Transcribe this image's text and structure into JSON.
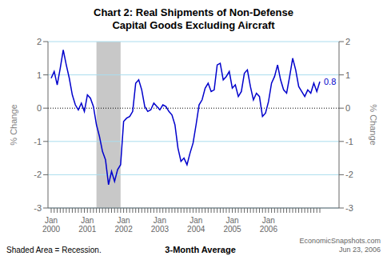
{
  "chart_data": {
    "type": "line",
    "title": "Chart 2: Real Shipments of Non-Defense\nCapital Goods Excluding Aircraft",
    "ylabel": "% Change",
    "y2label": "% Change",
    "categories": [
      "Jan\n2000",
      null,
      null,
      null,
      null,
      null,
      null,
      null,
      null,
      null,
      null,
      null,
      "Jan\n2001",
      null,
      null,
      null,
      null,
      null,
      null,
      null,
      null,
      null,
      null,
      null,
      "Jan\n2002",
      null,
      null,
      null,
      null,
      null,
      null,
      null,
      null,
      null,
      null,
      null,
      "Jan\n2003",
      null,
      null,
      null,
      null,
      null,
      null,
      null,
      null,
      null,
      null,
      null,
      "Jan\n2004",
      null,
      null,
      null,
      null,
      null,
      null,
      null,
      null,
      null,
      null,
      null,
      "Jan\n2005",
      null,
      null,
      null,
      null,
      null,
      null,
      null,
      null,
      null,
      null,
      null,
      "Jan\n2006",
      null,
      null,
      null,
      null,
      null,
      null,
      null,
      null,
      null,
      null,
      null,
      null,
      null,
      null,
      null,
      null,
      null
    ],
    "values": [
      0.9,
      1.1,
      0.7,
      1.2,
      1.75,
      1.3,
      0.9,
      0.4,
      0.1,
      -0.05,
      0.15,
      -0.1,
      0.4,
      0.3,
      0.05,
      -0.5,
      -0.85,
      -1.3,
      -1.55,
      -2.3,
      -1.9,
      -2.2,
      -1.85,
      -1.7,
      -0.4,
      -0.3,
      -0.25,
      -0.1,
      0.75,
      0.85,
      0.55,
      0.05,
      -0.1,
      -0.05,
      0.15,
      0.05,
      -0.05,
      0.1,
      0.05,
      -0.1,
      -0.2,
      -0.5,
      -1.2,
      -1.6,
      -1.5,
      -1.7,
      -1.35,
      -1.05,
      -0.5,
      0.1,
      0.25,
      0.6,
      0.75,
      0.5,
      0.55,
      1.3,
      1.35,
      0.85,
      0.95,
      1.1,
      0.6,
      0.7,
      0.35,
      0.5,
      1.05,
      1.15,
      0.65,
      0.25,
      0.45,
      0.35,
      -0.25,
      -0.15,
      0.2,
      0.75,
      0.95,
      1.3,
      0.85,
      0.55,
      0.45,
      0.95,
      1.5,
      1.15,
      0.65,
      0.5,
      0.35,
      0.55,
      0.45,
      0.75,
      0.5,
      0.8
    ],
    "color": "#0000cc",
    "ylim": [
      -3,
      2
    ],
    "yticks": [
      -3,
      -2,
      -1,
      0,
      1,
      2
    ],
    "y2lim": [
      -3,
      2
    ],
    "y2ticks": [
      -3,
      -2,
      -1,
      0,
      1,
      2
    ],
    "grid": true,
    "annotations": [
      {
        "text": "0.8"
      }
    ],
    "shaded": {
      "x_start": 15,
      "x_end": 23,
      "color": "#c8c8c8"
    },
    "footer": [
      "Shaded Area = Recession.",
      "3-Month Average",
      "EconomicSnapshots.com\nJun 23, 2006"
    ]
  }
}
